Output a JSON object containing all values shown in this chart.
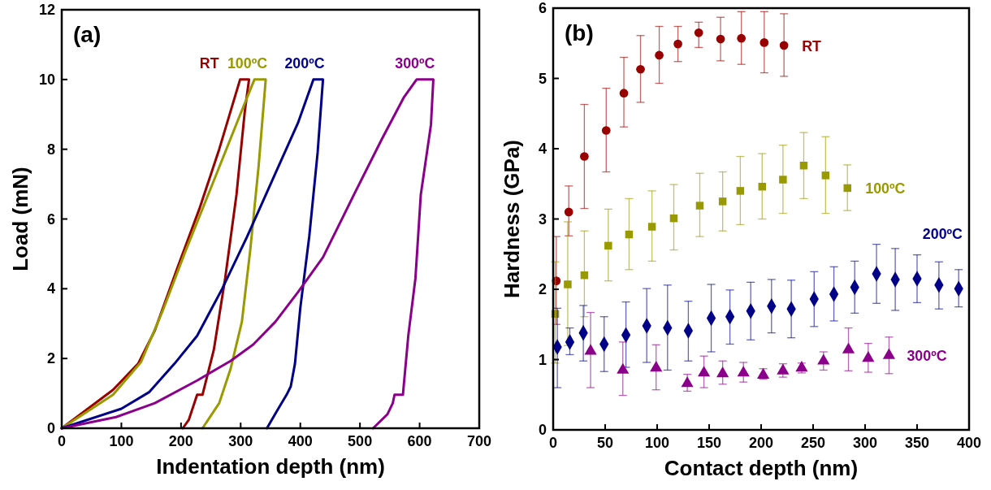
{
  "chart_data": [
    {
      "type": "line",
      "xlabel": "Indentation depth (nm)",
      "ylabel": "Load (mN)",
      "annotations": [
        "(a)"
      ],
      "xlim": [
        0,
        700
      ],
      "xticks": [
        0,
        100,
        200,
        300,
        400,
        500,
        600,
        700
      ],
      "ylim": [
        0,
        12
      ],
      "yticks": [
        0,
        2,
        4,
        6,
        8,
        10,
        12
      ],
      "marker": "none",
      "line_style": "solid",
      "series": [
        {
          "name": "RT",
          "color": "#990000",
          "x": [
            0,
            86,
            128,
            156,
            194,
            231,
            264,
            299,
            314,
            307,
            293,
            274,
            255,
            236,
            227,
            213,
            203
          ],
          "values": [
            0,
            1.1,
            1.85,
            2.8,
            4.6,
            6.3,
            8.0,
            10,
            10,
            9.1,
            6.7,
            4.3,
            2.25,
            0.96,
            0.96,
            0.24,
            0
          ]
        },
        {
          "name": "100ºC",
          "color": "#999900",
          "x": [
            0,
            86,
            133,
            170,
            208,
            255,
            297,
            323,
            342,
            330,
            316,
            302,
            283,
            264,
            236
          ],
          "values": [
            0,
            0.96,
            1.9,
            3.4,
            5.1,
            7.1,
            8.9,
            10,
            10,
            7.5,
            5.1,
            3.05,
            1.7,
            0.72,
            0
          ]
        },
        {
          "name": "200ºC",
          "color": "#000088",
          "x": [
            0,
            100,
            147,
            189,
            227,
            269,
            311,
            358,
            396,
            422,
            438,
            429,
            415,
            400,
            391,
            384,
            377,
            363,
            344
          ],
          "values": [
            0,
            0.56,
            1.04,
            1.85,
            2.65,
            4.0,
            5.5,
            7.3,
            8.75,
            10,
            10,
            7.9,
            5.5,
            3.45,
            1.85,
            1.2,
            0.96,
            0.56,
            0
          ]
        },
        {
          "name": "300ºC",
          "color": "#8b008b",
          "x": [
            0,
            91,
            156,
            227,
            283,
            321,
            358,
            396,
            438,
            490,
            537,
            574,
            595,
            623,
            619,
            602,
            593,
            581,
            572,
            558,
            555,
            546,
            522
          ],
          "values": [
            0,
            0.32,
            0.72,
            1.37,
            1.93,
            2.4,
            3.05,
            3.9,
            4.9,
            6.7,
            8.3,
            9.5,
            10,
            10,
            8.7,
            6.7,
            4.3,
            2.65,
            0.96,
            0.96,
            0.72,
            0.4,
            0
          ]
        }
      ]
    },
    {
      "type": "scatter",
      "xlabel": "Contact depth (nm)",
      "ylabel": "Hardness (GPa)",
      "annotations": [
        "(b)"
      ],
      "xlim": [
        0,
        400
      ],
      "xticks": [
        0,
        50,
        100,
        150,
        200,
        250,
        300,
        350,
        400
      ],
      "ylim": [
        0,
        6
      ],
      "yticks": [
        0,
        1,
        2,
        3,
        4,
        5,
        6
      ],
      "series": [
        {
          "name": "RT",
          "color": "#990000",
          "marker": "circle",
          "x": [
            3,
            15,
            30,
            51,
            68,
            84,
            102,
            120,
            140,
            161,
            181,
            203,
            222
          ],
          "values": [
            2.12,
            3.1,
            3.89,
            4.26,
            4.79,
            5.13,
            5.33,
            5.49,
            5.65,
            5.56,
            5.57,
            5.51,
            5.47
          ],
          "errors": [
            [
              1.5,
              2.75
            ],
            [
              2.76,
              3.47
            ],
            [
              3.15,
              4.63
            ],
            [
              3.67,
              4.86
            ],
            [
              4.31,
              5.3
            ],
            [
              4.66,
              5.61
            ],
            [
              4.93,
              5.74
            ],
            [
              5.24,
              5.74
            ],
            [
              5.44,
              5.8
            ],
            [
              5.25,
              5.87
            ],
            [
              5.2,
              5.95
            ],
            [
              5.08,
              5.95
            ],
            [
              5.03,
              5.92
            ]
          ]
        },
        {
          "name": "100ºC",
          "color": "#999900",
          "marker": "square",
          "x": [
            2,
            14,
            30,
            53,
            73,
            95,
            116,
            141,
            163,
            180,
            201,
            221,
            241,
            262,
            283
          ],
          "values": [
            1.65,
            2.07,
            2.2,
            2.62,
            2.78,
            2.89,
            3.01,
            3.19,
            3.25,
            3.4,
            3.46,
            3.56,
            3.76,
            3.62,
            3.44
          ],
          "errors": [
            [
              0.95,
              2.39
            ],
            [
              1.2,
              2.96
            ],
            [
              1.61,
              2.83
            ],
            [
              2.12,
              3.14
            ],
            [
              2.28,
              3.29
            ],
            [
              2.4,
              3.4
            ],
            [
              2.56,
              3.49
            ],
            [
              2.75,
              3.65
            ],
            [
              2.83,
              3.67
            ],
            [
              2.92,
              3.89
            ],
            [
              3.0,
              3.93
            ],
            [
              3.08,
              4.05
            ],
            [
              3.29,
              4.23
            ],
            [
              3.08,
              4.17
            ],
            [
              3.12,
              3.77
            ]
          ]
        },
        {
          "name": "200ºC",
          "color": "#000088",
          "marker": "diamond",
          "x": [
            4,
            16,
            29,
            49,
            70,
            90,
            110,
            130,
            152,
            170,
            190,
            210,
            229,
            251,
            270,
            290,
            311,
            329,
            350,
            371,
            390
          ],
          "values": [
            1.18,
            1.25,
            1.38,
            1.22,
            1.35,
            1.48,
            1.45,
            1.41,
            1.59,
            1.61,
            1.69,
            1.76,
            1.72,
            1.86,
            1.93,
            2.03,
            2.22,
            2.14,
            2.15,
            2.06,
            2.01
          ],
          "errors": [
            [
              0.6,
              1.73
            ],
            [
              1.07,
              1.45
            ],
            [
              0.98,
              1.77
            ],
            [
              0.83,
              1.61
            ],
            [
              0.89,
              1.82
            ],
            [
              0.96,
              2.01
            ],
            [
              0.85,
              2.06
            ],
            [
              0.98,
              1.83
            ],
            [
              1.11,
              2.07
            ],
            [
              1.22,
              1.99
            ],
            [
              1.28,
              2.1
            ],
            [
              1.38,
              2.14
            ],
            [
              1.31,
              2.13
            ],
            [
              1.47,
              2.25
            ],
            [
              1.55,
              2.32
            ],
            [
              1.66,
              2.4
            ],
            [
              1.8,
              2.64
            ],
            [
              1.7,
              2.58
            ],
            [
              1.81,
              2.49
            ],
            [
              1.72,
              2.39
            ],
            [
              1.75,
              2.28
            ]
          ]
        },
        {
          "name": "300ºC",
          "color": "#8b008b",
          "marker": "triangle",
          "x": [
            36,
            67,
            99,
            129,
            145,
            163,
            183,
            202,
            221,
            239,
            260,
            284,
            303,
            323
          ],
          "values": [
            1.12,
            0.85,
            0.88,
            0.66,
            0.81,
            0.8,
            0.81,
            0.78,
            0.84,
            0.88,
            0.98,
            1.14,
            1.02,
            1.06
          ],
          "errors": [
            [
              0.6,
              1.67
            ],
            [
              0.49,
              1.25
            ],
            [
              0.57,
              1.21
            ],
            [
              0.55,
              0.79
            ],
            [
              0.6,
              1.05
            ],
            [
              0.65,
              0.98
            ],
            [
              0.68,
              0.96
            ],
            [
              0.72,
              0.87
            ],
            [
              0.75,
              0.94
            ],
            [
              0.81,
              0.95
            ],
            [
              0.85,
              1.11
            ],
            [
              0.84,
              1.45
            ],
            [
              0.82,
              1.23
            ],
            [
              0.8,
              1.32
            ]
          ]
        }
      ]
    }
  ]
}
